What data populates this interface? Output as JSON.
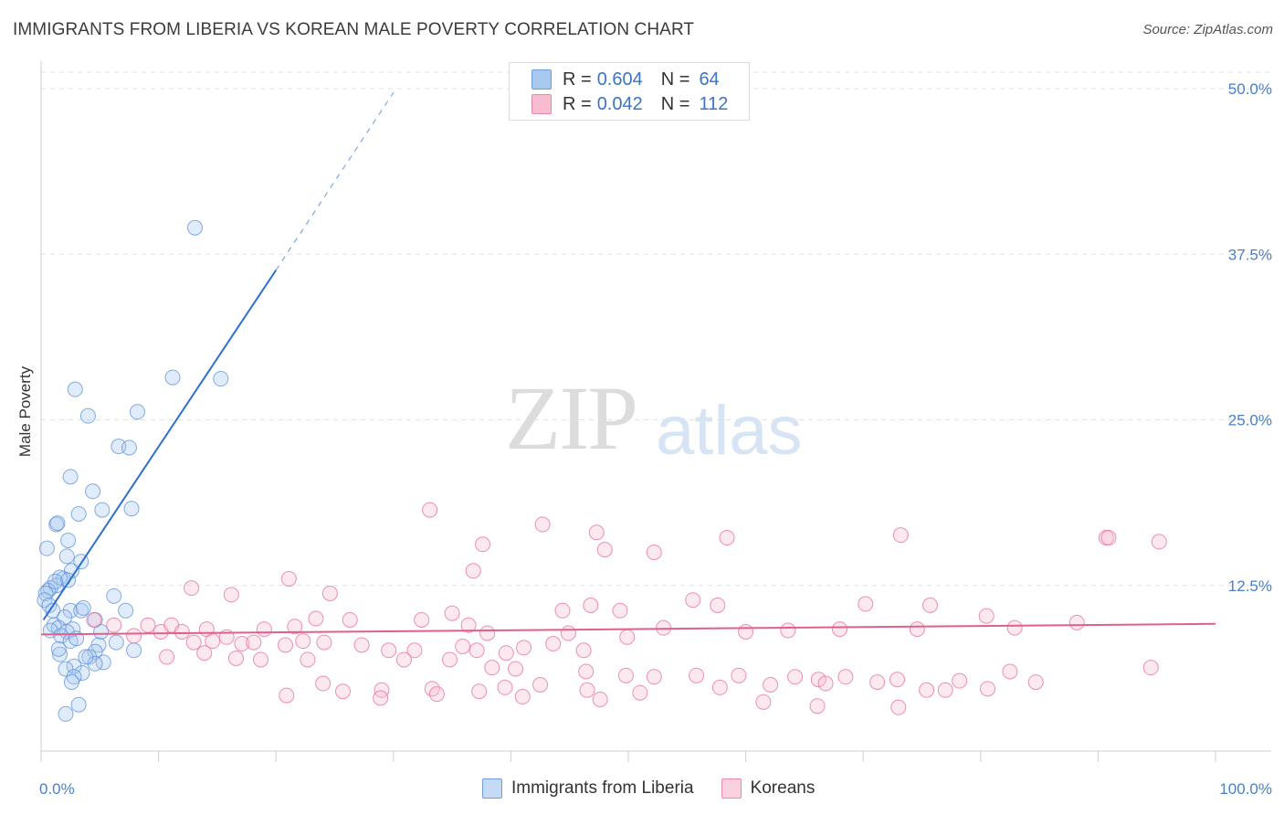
{
  "title": "IMMIGRANTS FROM LIBERIA VS KOREAN MALE POVERTY CORRELATION CHART",
  "source": "Source: ZipAtlas.com",
  "watermark": {
    "zip": "ZIP",
    "atlas": "atlas"
  },
  "legend": {
    "r_label": "R =",
    "n_label": "N =",
    "rows": [
      {
        "r": "0.604",
        "n": "64",
        "color": "#a9c8f0",
        "border": "#6f9fdb"
      },
      {
        "r": "0.042",
        "n": "112",
        "color": "#f7bcd0",
        "border": "#e98aaa"
      }
    ]
  },
  "bottom_legend": [
    {
      "label": "Immigrants from Liberia",
      "color": "#c5daf6",
      "border": "#6f9fdb"
    },
    {
      "label": "Koreans",
      "color": "#fbd0de",
      "border": "#e98aaa"
    }
  ],
  "chart_data": {
    "type": "scatter",
    "title": "IMMIGRANTS FROM LIBERIA VS KOREAN MALE POVERTY CORRELATION CHART",
    "xlabel": "",
    "ylabel": "Male Poverty",
    "xlim": [
      0,
      100
    ],
    "ylim": [
      0,
      50
    ],
    "x_tick_labels": [
      "0.0%",
      "100.0%"
    ],
    "y_ticks": [
      12.5,
      25.0,
      37.5,
      50.0
    ],
    "y_tick_labels": [
      "12.5%",
      "25.0%",
      "37.5%",
      "50.0%"
    ],
    "grid": true,
    "series": [
      {
        "name": "Immigrants from Liberia",
        "color": "#5b92d8",
        "fill": "rgba(170,200,240,0.35)",
        "trend": {
          "x0": 0.2,
          "y0": 9.9,
          "x1": 20.0,
          "y1": 36.3,
          "dash_to_x": 30.0,
          "dash_to_y": 49.7
        },
        "points": [
          [
            13.1,
            39.5
          ],
          [
            11.2,
            28.2
          ],
          [
            15.3,
            28.1
          ],
          [
            2.9,
            27.3
          ],
          [
            4.0,
            25.3
          ],
          [
            8.2,
            25.6
          ],
          [
            6.6,
            23.0
          ],
          [
            7.5,
            22.9
          ],
          [
            2.5,
            20.7
          ],
          [
            4.4,
            19.6
          ],
          [
            5.2,
            18.2
          ],
          [
            7.7,
            18.3
          ],
          [
            3.2,
            17.9
          ],
          [
            1.3,
            17.1
          ],
          [
            1.4,
            17.2
          ],
          [
            2.3,
            15.9
          ],
          [
            0.5,
            15.3
          ],
          [
            2.2,
            14.7
          ],
          [
            3.4,
            14.3
          ],
          [
            2.6,
            13.6
          ],
          [
            1.9,
            13.0
          ],
          [
            1.6,
            13.1
          ],
          [
            1.3,
            12.5
          ],
          [
            0.8,
            12.3
          ],
          [
            0.6,
            12.1
          ],
          [
            0.4,
            11.9
          ],
          [
            6.2,
            11.7
          ],
          [
            0.3,
            11.4
          ],
          [
            0.7,
            11.0
          ],
          [
            1.0,
            10.6
          ],
          [
            2.5,
            10.6
          ],
          [
            3.4,
            10.6
          ],
          [
            3.6,
            10.8
          ],
          [
            7.2,
            10.6
          ],
          [
            2.0,
            10.1
          ],
          [
            4.6,
            9.9
          ],
          [
            1.1,
            9.5
          ],
          [
            1.5,
            9.3
          ],
          [
            2.7,
            9.2
          ],
          [
            0.8,
            9.1
          ],
          [
            2.2,
            9.0
          ],
          [
            5.1,
            9.0
          ],
          [
            1.7,
            8.7
          ],
          [
            2.5,
            8.3
          ],
          [
            3.0,
            8.5
          ],
          [
            4.9,
            8.0
          ],
          [
            6.4,
            8.2
          ],
          [
            4.6,
            7.5
          ],
          [
            7.9,
            7.6
          ],
          [
            1.6,
            7.3
          ],
          [
            4.1,
            7.1
          ],
          [
            1.5,
            7.7
          ],
          [
            2.8,
            6.4
          ],
          [
            5.3,
            6.7
          ],
          [
            4.6,
            6.6
          ],
          [
            3.8,
            7.1
          ],
          [
            2.1,
            6.2
          ],
          [
            3.5,
            5.9
          ],
          [
            2.8,
            5.6
          ],
          [
            2.6,
            5.2
          ],
          [
            3.2,
            3.5
          ],
          [
            2.1,
            2.8
          ],
          [
            2.3,
            12.9
          ],
          [
            1.2,
            12.8
          ]
        ]
      },
      {
        "name": "Koreans",
        "color": "#e66e98",
        "fill": "rgba(247,188,208,0.35)",
        "trend": {
          "x0": 0.0,
          "y0": 8.8,
          "x1": 100.0,
          "y1": 9.6
        },
        "points": [
          [
            33.1,
            18.2
          ],
          [
            42.7,
            17.1
          ],
          [
            47.3,
            16.5
          ],
          [
            58.4,
            16.1
          ],
          [
            73.2,
            16.3
          ],
          [
            90.7,
            16.1
          ],
          [
            90.9,
            16.1
          ],
          [
            95.2,
            15.8
          ],
          [
            37.6,
            15.6
          ],
          [
            48.0,
            15.2
          ],
          [
            52.2,
            15.0
          ],
          [
            36.8,
            13.6
          ],
          [
            21.1,
            13.0
          ],
          [
            12.8,
            12.3
          ],
          [
            16.2,
            11.8
          ],
          [
            24.6,
            11.9
          ],
          [
            46.8,
            11.0
          ],
          [
            49.3,
            10.6
          ],
          [
            55.5,
            11.4
          ],
          [
            57.6,
            11.0
          ],
          [
            70.2,
            11.1
          ],
          [
            75.7,
            11.0
          ],
          [
            80.5,
            10.2
          ],
          [
            23.4,
            10.0
          ],
          [
            35.0,
            10.4
          ],
          [
            44.4,
            10.6
          ],
          [
            26.3,
            9.9
          ],
          [
            32.4,
            9.9
          ],
          [
            36.4,
            9.5
          ],
          [
            14.1,
            9.2
          ],
          [
            19.0,
            9.2
          ],
          [
            21.6,
            9.4
          ],
          [
            38.0,
            8.9
          ],
          [
            44.9,
            8.9
          ],
          [
            49.9,
            8.6
          ],
          [
            53.0,
            9.3
          ],
          [
            60.0,
            9.0
          ],
          [
            63.6,
            9.1
          ],
          [
            68.0,
            9.2
          ],
          [
            74.6,
            9.2
          ],
          [
            82.9,
            9.3
          ],
          [
            88.2,
            9.7
          ],
          [
            4.5,
            9.9
          ],
          [
            6.2,
            9.5
          ],
          [
            7.9,
            8.7
          ],
          [
            9.1,
            9.5
          ],
          [
            10.2,
            9.0
          ],
          [
            11.1,
            9.5
          ],
          [
            12.0,
            9.0
          ],
          [
            13.0,
            8.2
          ],
          [
            14.6,
            8.3
          ],
          [
            15.8,
            8.6
          ],
          [
            17.1,
            8.1
          ],
          [
            18.1,
            8.2
          ],
          [
            20.8,
            8.0
          ],
          [
            22.3,
            8.3
          ],
          [
            24.1,
            8.2
          ],
          [
            27.3,
            8.0
          ],
          [
            29.6,
            7.6
          ],
          [
            31.8,
            7.6
          ],
          [
            35.9,
            7.9
          ],
          [
            37.1,
            7.6
          ],
          [
            39.6,
            7.4
          ],
          [
            41.1,
            7.8
          ],
          [
            43.6,
            8.1
          ],
          [
            46.2,
            7.6
          ],
          [
            10.7,
            7.1
          ],
          [
            13.9,
            7.4
          ],
          [
            16.6,
            7.0
          ],
          [
            18.7,
            6.9
          ],
          [
            22.7,
            6.9
          ],
          [
            30.9,
            6.9
          ],
          [
            34.8,
            6.9
          ],
          [
            38.4,
            6.3
          ],
          [
            40.4,
            6.2
          ],
          [
            46.4,
            6.0
          ],
          [
            49.8,
            5.7
          ],
          [
            52.2,
            5.6
          ],
          [
            55.8,
            5.7
          ],
          [
            59.4,
            5.7
          ],
          [
            64.2,
            5.6
          ],
          [
            66.2,
            5.4
          ],
          [
            68.5,
            5.6
          ],
          [
            72.9,
            5.4
          ],
          [
            78.2,
            5.3
          ],
          [
            82.5,
            6.0
          ],
          [
            94.5,
            6.3
          ],
          [
            24.0,
            5.1
          ],
          [
            25.7,
            4.5
          ],
          [
            29.0,
            4.6
          ],
          [
            33.3,
            4.7
          ],
          [
            37.3,
            4.5
          ],
          [
            39.5,
            4.8
          ],
          [
            42.5,
            5.0
          ],
          [
            46.5,
            4.6
          ],
          [
            51.0,
            4.4
          ],
          [
            57.8,
            4.8
          ],
          [
            62.1,
            5.0
          ],
          [
            66.8,
            5.1
          ],
          [
            71.2,
            5.2
          ],
          [
            75.4,
            4.6
          ],
          [
            77.0,
            4.6
          ],
          [
            80.6,
            4.7
          ],
          [
            84.7,
            5.2
          ],
          [
            20.9,
            4.2
          ],
          [
            28.9,
            4.0
          ],
          [
            33.7,
            4.3
          ],
          [
            41.0,
            4.1
          ],
          [
            47.6,
            3.9
          ],
          [
            61.5,
            3.7
          ],
          [
            66.1,
            3.4
          ],
          [
            73.0,
            3.3
          ]
        ]
      }
    ]
  }
}
